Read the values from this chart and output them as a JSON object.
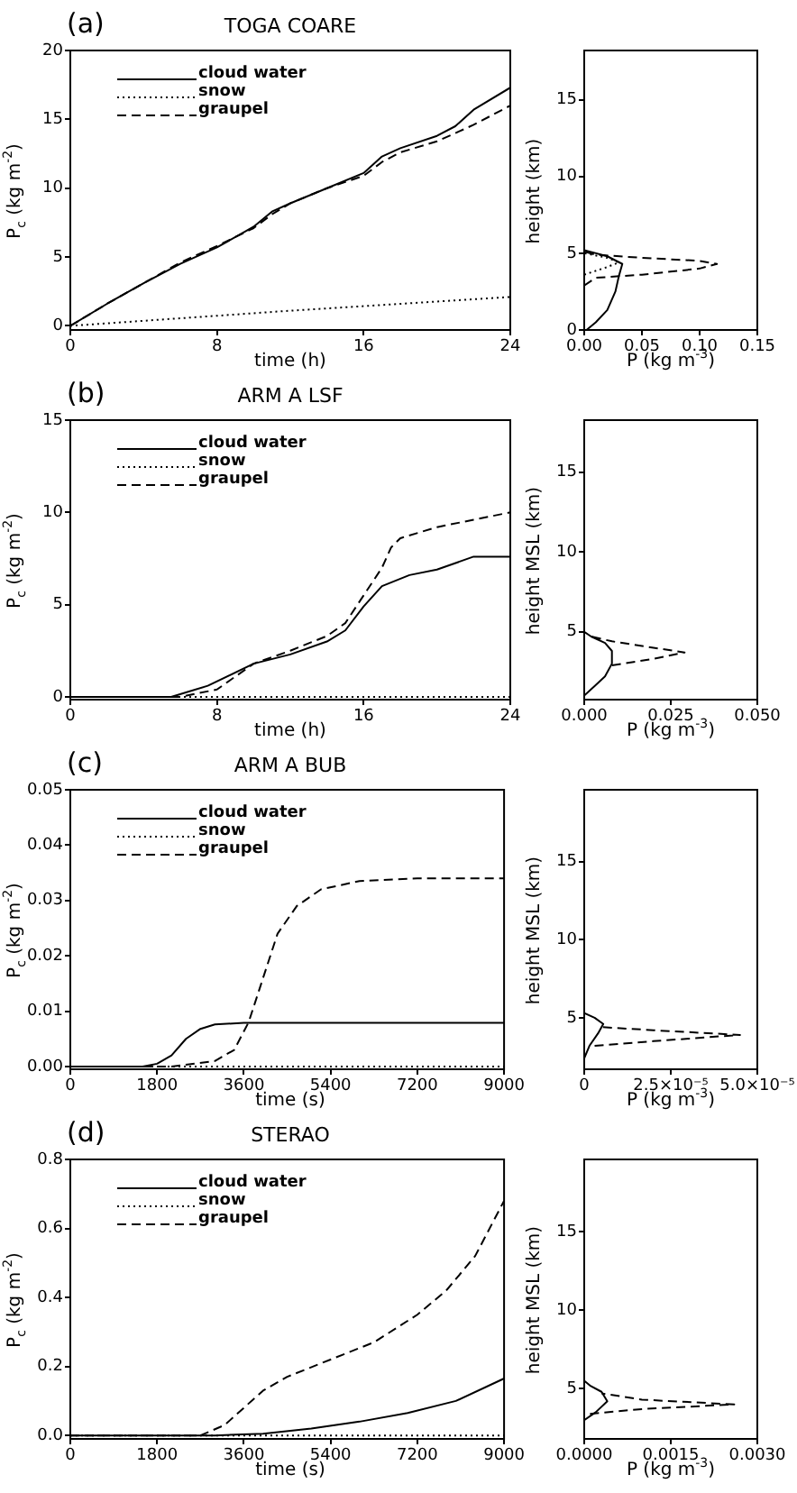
{
  "chart_data": [
    {
      "type": "line",
      "title": "TOGA COARE",
      "annotations": [
        "(a)"
      ],
      "xlabel": "time (h)",
      "ylabel": "P$_{c}$ (kg m$^{-2}$)",
      "xlim": [
        0,
        24
      ],
      "xticks": [
        0,
        8,
        16,
        24
      ],
      "ylim": [
        -0.3,
        20
      ],
      "yticks": [
        0,
        5,
        10,
        15,
        20
      ],
      "legend": "top left",
      "marker": "none",
      "series": [
        {
          "name": "cloud water",
          "color": "#000000",
          "line_style": "solid",
          "x": [
            0,
            2,
            4,
            6,
            8,
            10,
            11,
            12,
            14,
            16,
            17,
            18,
            20,
            21,
            22,
            24
          ],
          "values": [
            0,
            1.6,
            3.1,
            4.5,
            5.7,
            7.2,
            8.3,
            8.9,
            10.0,
            11.1,
            12.3,
            12.9,
            13.8,
            14.5,
            15.7,
            17.3
          ]
        },
        {
          "name": "snow",
          "color": "#000000",
          "line_style": "dotted",
          "x": [
            0,
            12,
            24
          ],
          "values": [
            0,
            1.1,
            2.1
          ]
        },
        {
          "name": "graupel",
          "color": "#000000",
          "line_style": "dashed",
          "x": [
            0,
            2,
            4,
            6,
            8,
            10,
            11,
            12,
            14,
            16,
            17,
            18,
            20,
            22,
            24
          ],
          "values": [
            0,
            1.6,
            3.1,
            4.6,
            5.8,
            7.1,
            8.1,
            8.9,
            10.0,
            10.9,
            11.9,
            12.6,
            13.4,
            14.6,
            16.0
          ]
        }
      ]
    },
    {
      "type": "line",
      "xlabel": "P (kg m$^{-3}$)",
      "ylabel": "height (km)",
      "xlim": [
        0,
        0.15
      ],
      "xticks": [
        {
          "value": 0,
          "label": "0.00"
        },
        0.05,
        {
          "value": 0.1,
          "label": "0.10"
        },
        0.15
      ],
      "ylim": [
        0,
        18.2
      ],
      "yticks": [
        0,
        5,
        10,
        15
      ],
      "marker": "none",
      "series": [
        {
          "color": "#000000",
          "line_style": "solid",
          "x": [
            0.002,
            0.01,
            0.02,
            0.027,
            0.03,
            0.033,
            0.02,
            0.005,
            0
          ],
          "values": [
            0,
            0.5,
            1.3,
            2.5,
            3.5,
            4.3,
            4.8,
            5.1,
            5.2
          ]
        },
        {
          "color": "#000000",
          "line_style": "dotted",
          "x": [
            0,
            0.02,
            0.03,
            0.02,
            0
          ],
          "values": [
            3.6,
            4.1,
            4.4,
            4.7,
            5.0
          ]
        },
        {
          "color": "#000000",
          "line_style": "dashed",
          "x": [
            0,
            0.01,
            0.05,
            0.1,
            0.115,
            0.1,
            0.05,
            0.01,
            0
          ],
          "values": [
            2.9,
            3.4,
            3.6,
            4.0,
            4.3,
            4.5,
            4.7,
            4.9,
            5.1
          ]
        }
      ]
    },
    {
      "type": "line",
      "title": "ARM A LSF",
      "annotations": [
        "(b)"
      ],
      "xlabel": "time (h)",
      "ylabel": "P$_{c}$ (kg m$^{-2}$)",
      "xlim": [
        0,
        24
      ],
      "xticks": [
        0,
        8,
        16,
        24
      ],
      "ylim": [
        -0.15,
        15
      ],
      "yticks": [
        0,
        5,
        10,
        15
      ],
      "legend": "top left",
      "marker": "none",
      "series": [
        {
          "name": "cloud water",
          "color": "#000000",
          "line_style": "solid",
          "x": [
            0,
            5.5,
            7.5,
            10,
            12,
            14,
            15,
            16,
            17,
            18.5,
            20,
            22,
            24
          ],
          "values": [
            0,
            0,
            0.6,
            1.8,
            2.3,
            3.0,
            3.6,
            4.9,
            6.0,
            6.6,
            6.9,
            7.6,
            7.6
          ]
        },
        {
          "name": "snow",
          "color": "#000000",
          "line_style": "dotted",
          "x": [
            0,
            24
          ],
          "values": [
            0,
            0
          ]
        },
        {
          "name": "graupel",
          "color": "#000000",
          "line_style": "dashed",
          "x": [
            0,
            6,
            8,
            10,
            12,
            14,
            15,
            16,
            17,
            17.5,
            18,
            20,
            22,
            24
          ],
          "values": [
            0,
            0,
            0.4,
            1.8,
            2.5,
            3.3,
            4.0,
            5.5,
            7.0,
            8.1,
            8.6,
            9.2,
            9.6,
            10.0
          ]
        }
      ]
    },
    {
      "type": "line",
      "xlabel": "P (kg m$^{-3}$)",
      "ylabel": "height MSL (km)",
      "xlim": [
        0,
        0.05
      ],
      "xticks": [
        {
          "value": 0,
          "label": "0.000"
        },
        0.025,
        {
          "value": 0.05,
          "label": "0.050"
        }
      ],
      "ylim": [
        0.75,
        18.25
      ],
      "yticks": [
        5,
        10,
        15
      ],
      "marker": "none",
      "series": [
        {
          "color": "#000000",
          "line_style": "solid",
          "x": [
            0,
            0.003,
            0.006,
            0.008,
            0.008,
            0.006,
            0.002,
            0
          ],
          "values": [
            1.0,
            1.6,
            2.2,
            3.0,
            3.8,
            4.3,
            4.7,
            5.0
          ]
        },
        {
          "color": "#000000",
          "line_style": "dashed",
          "x": [
            0.008,
            0.02,
            0.029,
            0.02,
            0.008,
            0.002
          ],
          "values": [
            2.9,
            3.3,
            3.7,
            4.0,
            4.4,
            4.7
          ]
        }
      ]
    },
    {
      "type": "line",
      "title": "ARM A BUB",
      "annotations": [
        "(c)"
      ],
      "xlabel": "time (s)",
      "ylabel": "P$_{c}$ (kg m$^{-2}$)",
      "xlim": [
        0,
        9000
      ],
      "xticks": [
        0,
        1800,
        3600,
        5400,
        7200,
        9000
      ],
      "ylim": [
        -0.0005,
        0.05
      ],
      "yticks": [
        {
          "value": 0,
          "label": "0.00"
        },
        0.01,
        0.02,
        0.03,
        0.04,
        0.05
      ],
      "legend": "top left",
      "marker": "none",
      "series": [
        {
          "name": "cloud water",
          "color": "#000000",
          "line_style": "solid",
          "x": [
            0,
            1500,
            1800,
            2100,
            2400,
            2700,
            3000,
            3600,
            9000
          ],
          "values": [
            0,
            0,
            0.0005,
            0.002,
            0.005,
            0.0068,
            0.0076,
            0.0079,
            0.0079
          ]
        },
        {
          "name": "snow",
          "color": "#000000",
          "line_style": "dotted",
          "x": [
            0,
            9000
          ],
          "values": [
            0,
            0
          ]
        },
        {
          "name": "graupel",
          "color": "#000000",
          "line_style": "dashed",
          "x": [
            0,
            2100,
            3000,
            3400,
            3700,
            4000,
            4300,
            4700,
            5200,
            6000,
            7200,
            9000
          ],
          "values": [
            0,
            0,
            0.001,
            0.003,
            0.008,
            0.016,
            0.024,
            0.029,
            0.032,
            0.0335,
            0.034,
            0.034
          ]
        }
      ]
    },
    {
      "type": "line",
      "xlabel": "P (kg m$^{-3}$)",
      "ylabel": "height MSL (km)",
      "xlim": [
        0,
        5e-05
      ],
      "xticks": [
        {
          "value": 0,
          "label": "0"
        },
        {
          "value": 2.5e-05,
          "label": "2.5×10⁻⁵"
        },
        {
          "value": 5e-05,
          "label": "5.0×10⁻⁵"
        }
      ],
      "ylim": [
        1.7,
        19.6
      ],
      "yticks": [
        5,
        10,
        15
      ],
      "marker": "none",
      "series": [
        {
          "color": "#000000",
          "line_style": "solid",
          "x": [
            0,
            1.5e-06,
            4e-06,
            5.5e-06,
            3e-06,
            0
          ],
          "values": [
            2.4,
            3.2,
            4.0,
            4.6,
            5.0,
            5.3
          ]
        },
        {
          "color": "#000000",
          "line_style": "dashed",
          "x": [
            3e-06,
            2e-05,
            4.5e-05,
            2e-05,
            5e-06
          ],
          "values": [
            3.2,
            3.5,
            3.9,
            4.2,
            4.4
          ]
        }
      ]
    },
    {
      "type": "line",
      "title": "STERAO",
      "annotations": [
        "(d)"
      ],
      "xlabel": "time (s)",
      "ylabel": "P$_{c}$ (kg m$^{-2}$)",
      "xlim": [
        0,
        9000
      ],
      "xticks": [
        0,
        1800,
        3600,
        5400,
        7200,
        9000
      ],
      "ylim": [
        -0.01,
        0.8
      ],
      "yticks": [
        {
          "value": 0,
          "label": "0.0"
        },
        0.2,
        0.4,
        0.6,
        0.8
      ],
      "legend": "top left",
      "marker": "none",
      "series": [
        {
          "name": "cloud water",
          "color": "#000000",
          "line_style": "solid",
          "x": [
            0,
            3000,
            4000,
            5000,
            6000,
            7000,
            8000,
            9000
          ],
          "values": [
            0,
            0,
            0.005,
            0.02,
            0.04,
            0.065,
            0.1,
            0.165
          ]
        },
        {
          "name": "snow",
          "color": "#000000",
          "line_style": "dotted",
          "x": [
            0,
            9000
          ],
          "values": [
            0,
            0
          ]
        },
        {
          "name": "graupel",
          "color": "#000000",
          "line_style": "dashed",
          "x": [
            0,
            2700,
            3200,
            3600,
            4000,
            4500,
            5400,
            6300,
            7200,
            7800,
            8400,
            9000
          ],
          "values": [
            0,
            0,
            0.03,
            0.08,
            0.13,
            0.17,
            0.22,
            0.27,
            0.35,
            0.42,
            0.52,
            0.68
          ]
        }
      ]
    },
    {
      "type": "line",
      "xlabel": "P (kg m$^{-3}$)",
      "ylabel": "height MSL (km)",
      "xlim": [
        0,
        0.003
      ],
      "xticks": [
        {
          "value": 0,
          "label": "0.0000"
        },
        0.0015,
        {
          "value": 0.003,
          "label": "0.0030"
        }
      ],
      "ylim": [
        1.8,
        19.6
      ],
      "yticks": [
        5,
        10,
        15
      ],
      "marker": "none",
      "series": [
        {
          "color": "#000000",
          "line_style": "solid",
          "x": [
            0,
            0.0002,
            0.0004,
            0.0003,
            0.0001,
            0
          ],
          "values": [
            3.0,
            3.5,
            4.2,
            4.8,
            5.2,
            5.5
          ]
        },
        {
          "color": "#000000",
          "line_style": "dashed",
          "x": [
            0.0001,
            0.001,
            0.0026,
            0.001,
            0.0003
          ],
          "values": [
            3.4,
            3.7,
            4.0,
            4.3,
            4.7
          ]
        }
      ]
    }
  ]
}
